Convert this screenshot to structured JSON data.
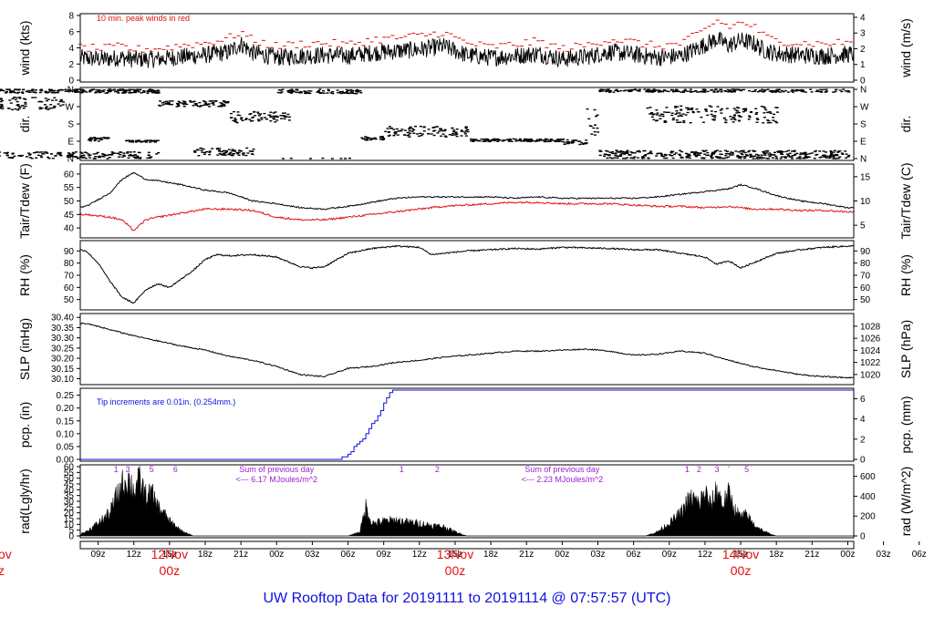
{
  "title": "UW Rooftop Data for 20191111  to  20191114 @ 07:57:57  (UTC)",
  "colors": {
    "wind_peak": "#e01010",
    "tdew": "#e01010",
    "pcp": "#1010e0",
    "insolation_note": "#a020d0",
    "date_label": "#e01010",
    "title": "#1010e0"
  },
  "time_axis": {
    "hours": [
      "09z",
      "12z",
      "15z",
      "18z",
      "21z",
      "00z",
      "03z",
      "06z",
      "09z",
      "12z",
      "15z",
      "18z",
      "21z",
      "00z",
      "03z",
      "06z",
      "09z",
      "12z",
      "15z",
      "18z",
      "21z",
      "00z",
      "03z",
      "06z"
    ],
    "date_labels": [
      {
        "hour": 15,
        "day": "12Nov",
        "time": "00z"
      },
      {
        "hour": 39,
        "day": "13Nov",
        "time": "00z"
      },
      {
        "hour": 63,
        "day": "14Nov",
        "time": "00z"
      }
    ],
    "clipped_left_label": {
      "day": "ov",
      "time": "z"
    }
  },
  "chart_data": [
    {
      "type": "line",
      "id": "wind",
      "ylabel_left": "wind (kts)",
      "ylabel_right": "wind (m/s)",
      "ylim": [
        0,
        8
      ],
      "ticks_left": [
        0,
        2,
        4,
        6,
        8
      ],
      "ylim_right": [
        0,
        4
      ],
      "ticks_right": [
        0,
        1,
        2,
        3,
        4
      ],
      "annotation": "10 min. peak winds in red",
      "series": [
        {
          "role": "mean",
          "x": [
            0,
            2,
            4,
            6,
            8,
            9.5,
            11,
            12,
            14,
            16,
            18,
            20,
            21,
            22,
            24,
            26,
            28,
            30,
            32,
            34,
            36,
            38,
            40,
            42,
            44,
            46,
            48,
            50,
            52,
            54,
            56,
            58,
            60,
            61,
            62,
            63,
            64,
            65,
            66,
            68,
            70,
            72
          ],
          "y": [
            2.8,
            2.9,
            2.6,
            2.9,
            2.7,
            2.6,
            2.8,
            2.6,
            2.6,
            2.9,
            3.1,
            3.5,
            4.5,
            3.4,
            2.8,
            3.0,
            3.1,
            3.0,
            3.4,
            3.6,
            3.8,
            4.2,
            3.1,
            2.8,
            3.0,
            3.3,
            2.6,
            2.9,
            3.5,
            3.2,
            2.8,
            3.0,
            4.4,
            5.1,
            4.3,
            4.9,
            4.6,
            3.7,
            3.3,
            3.1,
            3.0,
            3.2
          ]
        },
        {
          "role": "peak",
          "x": [
            0,
            2,
            4,
            6,
            8,
            9.5,
            11,
            12,
            14,
            16,
            18,
            20,
            21,
            22,
            24,
            26,
            28,
            30,
            32,
            34,
            36,
            38,
            40,
            42,
            44,
            46,
            48,
            50,
            52,
            54,
            56,
            58,
            60,
            61,
            62,
            63,
            64,
            65,
            66,
            68,
            70,
            72
          ],
          "y": [
            4.1,
            4.3,
            3.9,
            4.4,
            4.0,
            3.9,
            4.2,
            3.8,
            3.9,
            4.3,
            4.6,
            5.2,
            6.0,
            4.9,
            4.2,
            4.5,
            4.6,
            4.4,
            5.0,
            5.2,
            5.5,
            5.9,
            4.6,
            4.1,
            4.4,
            4.8,
            3.9,
            4.3,
            5.1,
            4.7,
            4.2,
            4.5,
            6.2,
            7.4,
            6.6,
            7.1,
            6.8,
            5.4,
            4.9,
            4.6,
            4.5,
            4.7
          ]
        }
      ]
    },
    {
      "type": "scatter",
      "id": "dir",
      "ylabel_left": "dir.",
      "ylabel_right": "dir.",
      "categories": [
        "N",
        "E",
        "S",
        "W",
        "N"
      ],
      "ylim": [
        0,
        360
      ],
      "segments": [
        {
          "x0": 0,
          "x1": 6,
          "y": 285,
          "spread": 70
        },
        {
          "x0": 0,
          "x1": 14,
          "y": 15,
          "spread": 40
        },
        {
          "x0": 0,
          "x1": 14,
          "y": 350,
          "spread": 20
        },
        {
          "x0": 8,
          "x1": 10,
          "y": 100,
          "spread": 20
        },
        {
          "x0": 11,
          "x1": 14,
          "y": 90,
          "spread": 10
        },
        {
          "x0": 14,
          "x1": 20,
          "y": 285,
          "spread": 30
        },
        {
          "x0": 17,
          "x1": 22,
          "y": 35,
          "spread": 40
        },
        {
          "x0": 20,
          "x1": 25,
          "y": 215,
          "spread": 60
        },
        {
          "x0": 24,
          "x1": 31,
          "y": 350,
          "spread": 25
        },
        {
          "x0": 31,
          "x1": 33,
          "y": 105,
          "spread": 20
        },
        {
          "x0": 33,
          "x1": 40,
          "y": 140,
          "spread": 55
        },
        {
          "x0": 40,
          "x1": 48,
          "y": 95,
          "spread": 15
        },
        {
          "x0": 48,
          "x1": 50,
          "y": 85,
          "spread": 25
        },
        {
          "x0": 50,
          "x1": 51,
          "y": 190,
          "spread": 150
        },
        {
          "x0": 51,
          "x1": 72,
          "y": 355,
          "spread": 20
        },
        {
          "x0": 51,
          "x1": 72,
          "y": 25,
          "spread": 35
        },
        {
          "x0": 55,
          "x1": 66,
          "y": 230,
          "spread": 90
        }
      ]
    },
    {
      "type": "line",
      "id": "temp",
      "ylabel_left": "Tair/Tdew (F)",
      "ylabel_right": "Tair/Tdew (C)",
      "ylim": [
        37,
        63
      ],
      "ticks_left": [
        40,
        45,
        50,
        55,
        60
      ],
      "ticks_right": [
        5,
        10,
        15
      ],
      "series": [
        {
          "role": "Tair",
          "x": [
            0,
            2,
            4,
            6,
            8,
            10,
            11,
            12,
            13,
            14,
            16,
            18,
            20,
            22,
            24,
            26,
            28,
            30,
            32,
            34,
            36,
            38,
            40,
            42,
            44,
            46,
            48,
            50,
            52,
            54,
            56,
            58,
            60,
            62,
            63,
            64,
            66,
            68,
            70,
            72
          ],
          "y": [
            49,
            48.5,
            47.5,
            47,
            48,
            53,
            58,
            60.5,
            58,
            57.5,
            56,
            54,
            53,
            50,
            49,
            47.5,
            47,
            48,
            49.5,
            51,
            51.5,
            51.5,
            51.5,
            51.5,
            51,
            51.5,
            51,
            51,
            51,
            51,
            51.5,
            52.5,
            53.5,
            54.5,
            56,
            55,
            52,
            50,
            49,
            47.5
          ]
        },
        {
          "role": "Tdew",
          "x": [
            0,
            2,
            4,
            6,
            8,
            10,
            11,
            12,
            13,
            14,
            16,
            18,
            20,
            22,
            24,
            26,
            28,
            30,
            32,
            34,
            36,
            38,
            40,
            42,
            44,
            46,
            48,
            50,
            52,
            54,
            56,
            58,
            60,
            62,
            63,
            64,
            66,
            68,
            70,
            72
          ],
          "y": [
            47.5,
            47,
            45.5,
            44.5,
            45,
            44,
            43,
            39,
            43,
            44,
            45.5,
            47,
            47,
            46.5,
            44,
            43,
            43,
            44,
            45,
            46,
            47,
            48,
            48.5,
            49,
            49.5,
            49.5,
            49,
            49,
            49,
            48.5,
            48,
            48,
            47.5,
            48,
            47.5,
            47,
            47,
            46.5,
            46.5,
            46
          ]
        }
      ]
    },
    {
      "type": "line",
      "id": "rh",
      "ylabel_left": "RH (%)",
      "ylabel_right": "RH (%)",
      "ylim": [
        43,
        97
      ],
      "ticks_left": [
        50,
        60,
        70,
        80,
        90
      ],
      "ticks_right": [
        50,
        60,
        70,
        80,
        90
      ],
      "series": [
        {
          "role": "RH",
          "x": [
            0,
            2,
            4,
            6,
            8,
            9,
            10,
            11,
            12,
            13,
            14,
            15,
            16,
            17,
            18,
            19,
            20,
            22,
            24,
            26,
            27,
            28,
            30,
            32,
            34,
            36,
            37,
            38,
            40,
            42,
            44,
            46,
            48,
            50,
            52,
            54,
            56,
            58,
            60,
            61,
            62,
            63,
            64,
            66,
            68,
            70,
            72
          ],
          "y": [
            94,
            93.5,
            94,
            94,
            90,
            80,
            65,
            52,
            47,
            58,
            63,
            60,
            67,
            74,
            83,
            87,
            86,
            87,
            85,
            77,
            76,
            77,
            88,
            92,
            94,
            93,
            87,
            88,
            90,
            91,
            92,
            91.5,
            93,
            92.5,
            92,
            91,
            91,
            88,
            85,
            79,
            82,
            76,
            80,
            88,
            91,
            93,
            94
          ]
        }
      ]
    },
    {
      "type": "line",
      "id": "slp",
      "ylabel_left": "SLP (inHg)",
      "ylabel_right": "SLP (hPa)",
      "ylim": [
        30.08,
        30.41
      ],
      "ticks_left": [
        30.1,
        30.15,
        30.2,
        30.25,
        30.3,
        30.35,
        30.4
      ],
      "ticks_right": [
        1020,
        1022,
        1024,
        1026,
        1028
      ],
      "series": [
        {
          "role": "SLP",
          "x": [
            0,
            4,
            6,
            8,
            10,
            12,
            14,
            16,
            18,
            20,
            22,
            24,
            26,
            28,
            30,
            32,
            34,
            36,
            38,
            40,
            42,
            44,
            46,
            48,
            50,
            52,
            54,
            56,
            58,
            60,
            62,
            64,
            66,
            68,
            70,
            72
          ],
          "y": [
            30.39,
            30.38,
            30.375,
            30.37,
            30.34,
            30.31,
            30.285,
            30.26,
            30.24,
            30.21,
            30.19,
            30.16,
            30.12,
            30.11,
            30.15,
            30.16,
            30.18,
            30.19,
            30.205,
            30.215,
            30.225,
            30.235,
            30.235,
            30.24,
            30.245,
            30.235,
            30.215,
            30.22,
            30.235,
            30.225,
            30.19,
            30.16,
            30.14,
            30.12,
            30.11,
            30.105
          ]
        }
      ]
    },
    {
      "type": "line",
      "id": "pcp",
      "ylabel_left": "pcp. (in)",
      "ylabel_right": "pcp. (mm)",
      "ylim": [
        0,
        0.27
      ],
      "ticks_left": [
        0,
        0.05,
        0.1,
        0.15,
        0.2,
        0.25
      ],
      "ticks_right": [
        0,
        2,
        4,
        6
      ],
      "annotation": "Tip increments are 0.01in. (0.254mm.)",
      "series": [
        {
          "role": "precip",
          "x": [
            0,
            29,
            29.8,
            30.5,
            31.3,
            32,
            32.7,
            33.2,
            33.6,
            72
          ],
          "y": [
            0,
            0,
            0.02,
            0.05,
            0.09,
            0.14,
            0.19,
            0.24,
            0.27,
            0.27
          ]
        }
      ]
    },
    {
      "type": "area",
      "id": "rad",
      "ylabel_left": "rad(Lgly/hr)",
      "ylabel_right": "rad (W/m^2)",
      "ylim": [
        0,
        60
      ],
      "ticks_left": [
        0,
        5,
        10,
        15,
        20,
        25,
        30,
        35,
        40,
        45,
        50,
        55,
        60
      ],
      "ticks_right": [
        0,
        200,
        400,
        600
      ],
      "day_markers": [
        {
          "marks": [
            "1",
            "3",
            "'",
            "5",
            "6"
          ],
          "hours": [
            10.5,
            11.5,
            12.5,
            13.5,
            15.5
          ]
        },
        {
          "marks": [
            "1",
            "2"
          ],
          "hours": [
            34.5,
            37.5
          ]
        },
        {
          "marks": [
            "1",
            "2",
            "3",
            "'",
            "5"
          ],
          "hours": [
            58.5,
            59.5,
            61,
            62,
            63.5
          ]
        }
      ],
      "notes": [
        {
          "line1": "Sum of previous day",
          "line2": "<--- 6.17 MJoules/m^2",
          "hour": 24
        },
        {
          "line1": "Sum of previous day",
          "line2": "<--- 2.23 MJoules/m^2",
          "hour": 48
        }
      ],
      "series": [
        {
          "role": "radiation",
          "x": [
            7,
            8,
            9,
            10,
            10.5,
            11,
            11.5,
            12,
            12.5,
            13,
            13.5,
            14,
            14.5,
            15,
            16,
            17,
            30,
            31,
            31.5,
            32,
            33,
            34,
            35,
            36,
            37,
            38,
            39,
            40,
            55,
            56,
            57,
            58,
            58.5,
            59,
            59.5,
            60,
            60.5,
            61,
            61.5,
            62,
            62.5,
            63,
            63.5,
            64,
            65,
            66
          ],
          "y": [
            0,
            4,
            12,
            22,
            36,
            48,
            55,
            44,
            52,
            38,
            40,
            28,
            22,
            14,
            5,
            0,
            0,
            4,
            28,
            12,
            14,
            15,
            13,
            12,
            10,
            9,
            4,
            0,
            0,
            4,
            12,
            22,
            32,
            36,
            30,
            42,
            28,
            45,
            30,
            40,
            25,
            18,
            20,
            12,
            4,
            0
          ]
        }
      ]
    }
  ]
}
